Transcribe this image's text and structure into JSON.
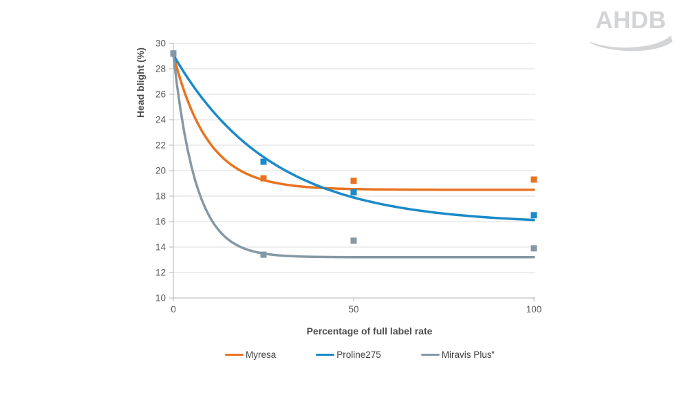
{
  "logo": {
    "text": "AHDB",
    "color": "#d3d4d6"
  },
  "chart_data": {
    "type": "scatter",
    "title": "",
    "xlabel": "Percentage of full label rate",
    "ylabel": "Head blight (%)",
    "xlim": [
      0,
      100
    ],
    "ylim": [
      10,
      30
    ],
    "x_ticks": [
      0,
      50,
      100
    ],
    "y_ticks": [
      10,
      12,
      14,
      16,
      18,
      20,
      22,
      24,
      26,
      28,
      30
    ],
    "grid": "horizontal",
    "legend_position": "bottom",
    "colors": {
      "grid": "#dbdbdb",
      "axis": "#b3b3b3",
      "tick_text": "#595959",
      "axis_title_text": "#4d4d4d",
      "legend_text": "#3f3f3f"
    },
    "series": [
      {
        "name": "Myresa",
        "sup": "",
        "color": "#e8731f",
        "points": [
          [
            0,
            29.2
          ],
          [
            25,
            19.4
          ],
          [
            50,
            19.2
          ],
          [
            100,
            19.3
          ]
        ],
        "fit": {
          "type": "exponential_decay",
          "y0": 29.1,
          "asymptote": 18.5,
          "k": 0.105
        }
      },
      {
        "name": "Proline275",
        "sup": "",
        "color": "#1b8ac9",
        "points": [
          [
            0,
            29.2
          ],
          [
            25,
            20.7
          ],
          [
            50,
            18.3
          ],
          [
            100,
            16.5
          ]
        ],
        "fit": {
          "type": "exponential_decay",
          "y0": 29.1,
          "asymptote": 15.8,
          "k": 0.037
        }
      },
      {
        "name": "Miravis Plus",
        "sup": "*",
        "color": "#8599a4",
        "points": [
          [
            0,
            29.2
          ],
          [
            25,
            13.4
          ],
          [
            50,
            14.5
          ],
          [
            100,
            13.9
          ]
        ],
        "fit": {
          "type": "exponential_decay",
          "y0": 29.1,
          "asymptote": 13.2,
          "k": 0.16
        }
      }
    ]
  }
}
